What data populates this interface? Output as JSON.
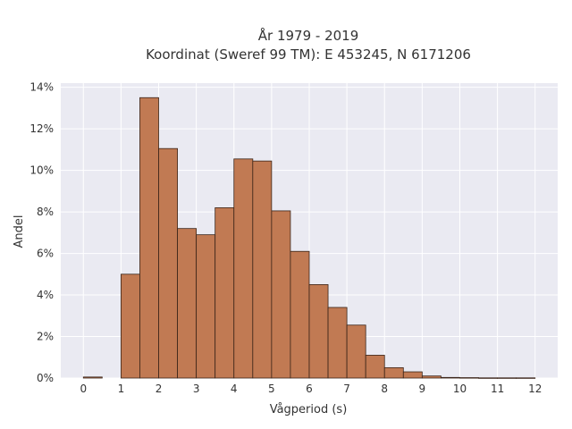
{
  "chart_data": {
    "type": "bar",
    "title_line1": "År 1979 - 2019",
    "title_line2": "Koordinat (Sweref 99 TM): E 453245, N 6171206",
    "xlabel": "Vågperiod (s)",
    "ylabel": "Andel",
    "xlim": [
      -0.6,
      12.6
    ],
    "ylim": [
      0,
      14.2
    ],
    "x_ticks": [
      0,
      1,
      2,
      3,
      4,
      5,
      6,
      7,
      8,
      9,
      10,
      11,
      12
    ],
    "x_tick_labels": [
      "0",
      "1",
      "2",
      "3",
      "4",
      "5",
      "6",
      "7",
      "8",
      "9",
      "10",
      "11",
      "12"
    ],
    "y_ticks": [
      0,
      2,
      4,
      6,
      8,
      10,
      12,
      14
    ],
    "y_tick_labels": [
      "0%",
      "2%",
      "4%",
      "6%",
      "8%",
      "10%",
      "12%",
      "14%"
    ],
    "bin_width": 0.5,
    "bin_starts": [
      0,
      1,
      1.5,
      2,
      2.5,
      3,
      3.5,
      4,
      4.5,
      5,
      5.5,
      6,
      6.5,
      7,
      7.5,
      8,
      8.5,
      9,
      9.5,
      10,
      10.5,
      11,
      11.5
    ],
    "values": [
      0.05,
      5.0,
      13.5,
      11.05,
      7.2,
      6.9,
      8.2,
      10.55,
      10.45,
      8.05,
      6.1,
      4.5,
      3.4,
      2.55,
      1.1,
      0.5,
      0.3,
      0.1,
      0.03,
      0.02,
      0.01,
      0.01,
      0.01
    ],
    "grid": true,
    "colors": {
      "bar_fill": "#c17a53",
      "bar_stroke": "#3a2418",
      "plot_background": "#eaeaf2",
      "grid": "#ffffff"
    }
  }
}
